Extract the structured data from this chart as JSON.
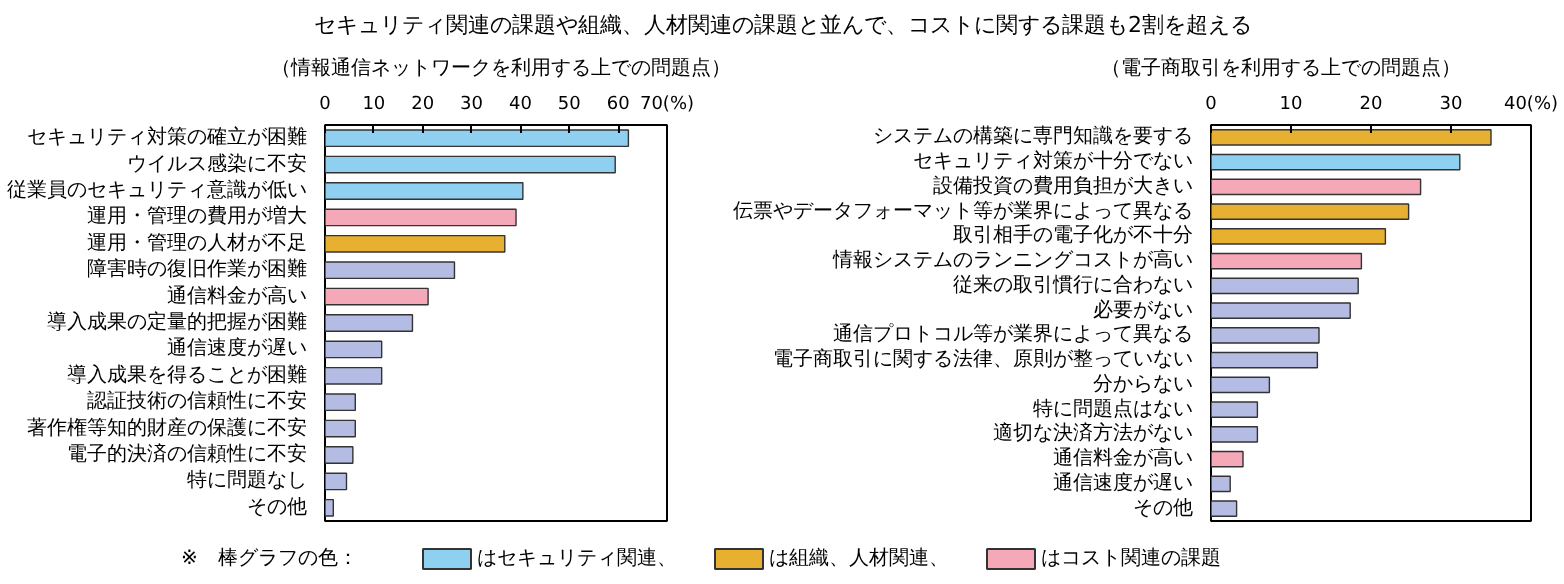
{
  "chart_data": [
    {
      "type": "bar",
      "orientation": "horizontal",
      "title": "セキュリティ関連の課題や組織、人材関連の課題と並んで、コストに関する課題も2割を超える",
      "subtitle": "（情報通信ネットワークを利用する上での問題点）",
      "categories": [
        "セキュリティ対策の確立が困難",
        "ウイルス感染に不安",
        "従業員のセキュリティ意識が低い",
        "運用・管理の費用が増大",
        "運用・管理の人材が不足",
        "障害時の復旧作業が困難",
        "通信料金が高い",
        "導入成果の定量的把握が困難",
        "通信速度が遅い",
        "導入成果を得ることが困難",
        "認証技術の信頼性に不安",
        "著作権等知的財産の保護に不安",
        "電子的決済の信頼性に不安",
        "特に問題なし",
        "その他"
      ],
      "series": [
        {
          "name": "はセキュリティ関連、",
          "color": "#8fd0f0",
          "values": [
            62.1,
            59.4,
            40.5,
            null,
            null,
            null,
            null,
            null,
            null,
            null,
            null,
            null,
            null,
            null,
            null
          ]
        },
        {
          "name": "は組織、人材関連、",
          "color": "#e8b030",
          "values": [
            null,
            null,
            null,
            null,
            36.8,
            null,
            null,
            null,
            null,
            null,
            null,
            null,
            null,
            null,
            null
          ]
        },
        {
          "name": "はコスト関連の課題",
          "color": "#f4a8b8",
          "values": [
            null,
            null,
            null,
            39.1,
            null,
            null,
            21.1,
            null,
            null,
            null,
            null,
            null,
            null,
            null,
            null
          ]
        },
        {
          "color": "#b4bce4",
          "values": [
            null,
            null,
            null,
            null,
            null,
            26.5,
            null,
            17.9,
            11.6,
            11.6,
            6.2,
            6.2,
            5.7,
            4.4,
            1.7
          ]
        }
      ],
      "legend_title": "※　棒グラフの色：",
      "legend": "bottom",
      "xlim": [
        0,
        70
      ],
      "xticks": [
        0,
        10,
        20,
        30,
        40,
        50,
        60,
        {
          "value": 70,
          "label": "70(%)"
        }
      ],
      "grid": false
    },
    {
      "type": "bar",
      "orientation": "horizontal",
      "subtitle": "（電子商取引を利用する上での問題点）",
      "categories": [
        "システムの構築に専門知識を要する",
        "セキュリティ対策が十分でない",
        "設備投資の費用負担が大きい",
        "伝票やデータフォーマット等が業界によって異なる",
        "取引相手の電子化が不十分",
        "情報システムのランニングコストが高い",
        "従来の取引慣行に合わない",
        "必要がない",
        "通信プロトコル等が業界によって異なる",
        "電子商取引に関する法律、原則が整っていない",
        "分からない",
        "特に問題点はない",
        "適切な決済方法がない",
        "通信料金が高い",
        "通信速度が遅い",
        "その他"
      ],
      "series": [
        {
          "color": "#e8b030",
          "values": [
            35.0,
            null,
            null,
            24.7,
            21.8,
            null,
            null,
            null,
            null,
            null,
            null,
            null,
            null,
            null,
            null,
            null
          ]
        },
        {
          "color": "#8fd0f0",
          "values": [
            null,
            31.1,
            null,
            null,
            null,
            null,
            null,
            null,
            null,
            null,
            null,
            null,
            null,
            null,
            null,
            null
          ]
        },
        {
          "color": "#f4a8b8",
          "values": [
            null,
            null,
            26.2,
            null,
            null,
            18.8,
            null,
            null,
            null,
            null,
            null,
            null,
            null,
            4.0,
            null,
            null
          ]
        },
        {
          "color": "#b4bce4",
          "values": [
            null,
            null,
            null,
            null,
            null,
            null,
            18.4,
            17.4,
            13.5,
            13.3,
            7.3,
            5.8,
            5.8,
            null,
            2.4,
            3.2
          ]
        }
      ],
      "xlim": [
        0,
        40
      ],
      "xticks": [
        0,
        10,
        20,
        30,
        {
          "value": 40,
          "label": "40(%)"
        }
      ],
      "grid": false
    }
  ]
}
